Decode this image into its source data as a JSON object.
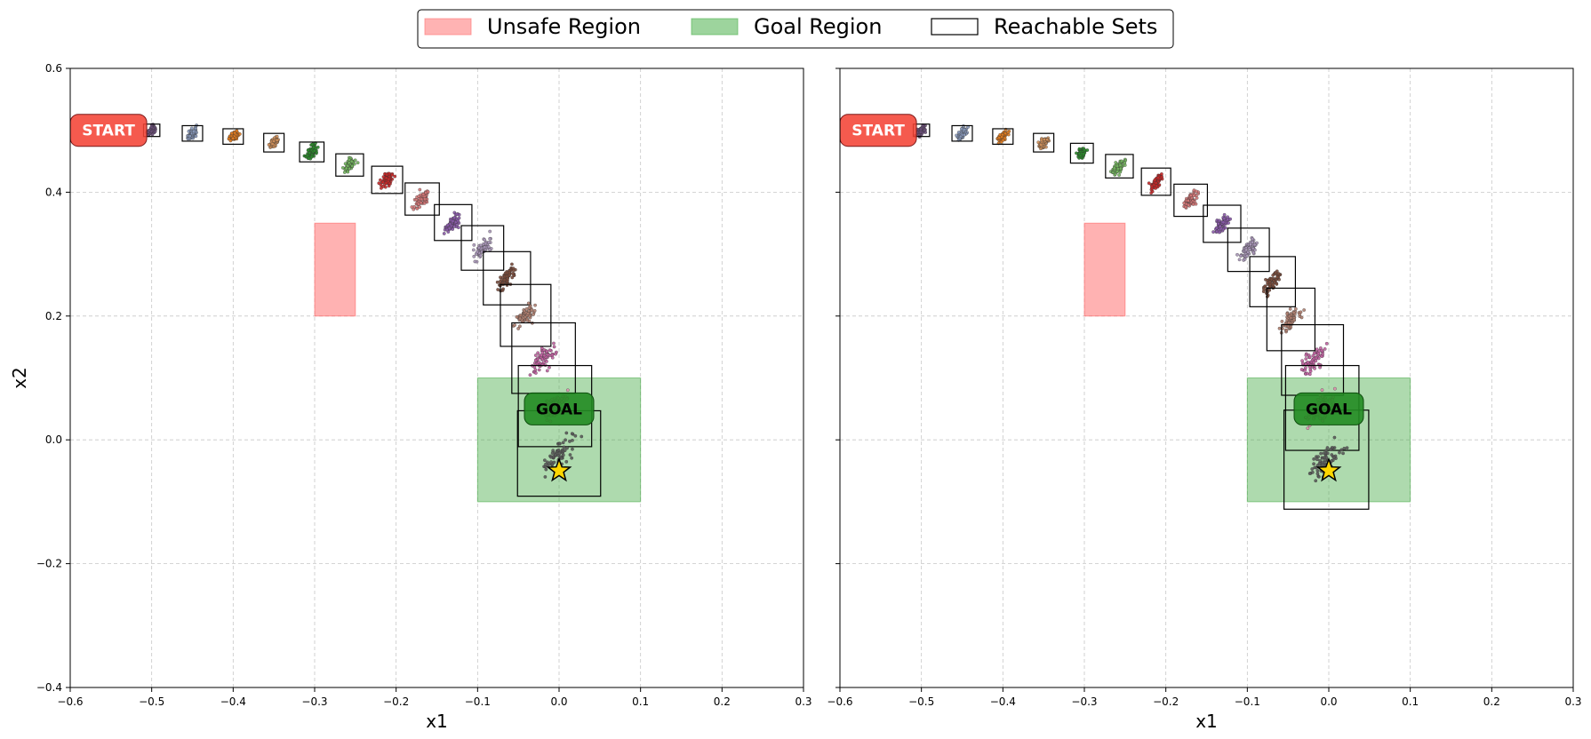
{
  "legend": {
    "placement": "top-center",
    "entries": [
      {
        "label": "Unsafe Region",
        "kind": "patch",
        "color": "#ff8080"
      },
      {
        "label": "Goal Region",
        "kind": "patch",
        "color": "#5cb85c"
      },
      {
        "label": "Reachable Sets",
        "kind": "outline",
        "color": "#000000"
      }
    ]
  },
  "colors": {
    "unsafe": "#ff6666",
    "goal": "#4cae4c",
    "start_label_bg": "#f44336",
    "goal_label_bg": "#228B22",
    "target_star": "#FFD700",
    "grid": "#b0b0b0",
    "set_outline": "#000000"
  },
  "chart_data": [
    {
      "type": "scatter",
      "panel": "left",
      "xlabel": "x1",
      "ylabel": "x2",
      "xlim": [
        -0.6,
        0.3
      ],
      "ylim": [
        -0.4,
        0.6
      ],
      "xticks": [
        "−0.6",
        "−0.5",
        "−0.4",
        "−0.3",
        "−0.2",
        "−0.1",
        "0.0",
        "0.1",
        "0.2",
        "0.3"
      ],
      "yticks": [
        "−0.4",
        "−0.2",
        "0.0",
        "0.2",
        "0.4",
        "0.6"
      ],
      "grid": true,
      "unsafe_region": {
        "x": [
          -0.3,
          -0.25
        ],
        "y": [
          0.2,
          0.35
        ]
      },
      "goal_region": {
        "x": [
          -0.1,
          0.1
        ],
        "y": [
          -0.1,
          0.1
        ]
      },
      "start_label": {
        "text": "START",
        "x": -0.553,
        "y": 0.5
      },
      "goal_label": {
        "text": "GOAL",
        "x": 0.0,
        "y": 0.05
      },
      "target": {
        "x": 0.0,
        "y": -0.05
      },
      "reachable_sets": [
        {
          "x": [
            -0.51,
            -0.49
          ],
          "y": [
            0.49,
            0.51
          ],
          "color": "#6b4f7a"
        },
        {
          "x": [
            -0.4625,
            -0.4375
          ],
          "y": [
            0.4825,
            0.5075
          ],
          "color": "#8899bb"
        },
        {
          "x": [
            -0.4125,
            -0.3875
          ],
          "y": [
            0.4775,
            0.5025
          ],
          "color": "#e07b1f"
        },
        {
          "x": [
            -0.3625,
            -0.3375
          ],
          "y": [
            0.465,
            0.495
          ],
          "color": "#d0905a"
        },
        {
          "x": [
            -0.3185,
            -0.2885
          ],
          "y": [
            0.449,
            0.481
          ],
          "color": "#2a8a2a"
        },
        {
          "x": [
            -0.274,
            -0.24
          ],
          "y": [
            0.426,
            0.462
          ],
          "color": "#73b55e"
        },
        {
          "x": [
            -0.23,
            -0.192
          ],
          "y": [
            0.398,
            0.442
          ],
          "color": "#c62828"
        },
        {
          "x": [
            -0.189,
            -0.147
          ],
          "y": [
            0.363,
            0.415
          ],
          "color": "#d47777"
        },
        {
          "x": [
            -0.153,
            -0.107
          ],
          "y": [
            0.322,
            0.38
          ],
          "color": "#8a5aa8"
        },
        {
          "x": [
            -0.12,
            -0.068
          ],
          "y": [
            0.274,
            0.346
          ],
          "color": "#a896b8"
        },
        {
          "x": [
            -0.093,
            -0.035
          ],
          "y": [
            0.218,
            0.304
          ],
          "color": "#7a4a3a"
        },
        {
          "x": [
            -0.072,
            -0.01
          ],
          "y": [
            0.151,
            0.251
          ],
          "color": "#b08070"
        },
        {
          "x": [
            -0.058,
            0.02
          ],
          "y": [
            0.075,
            0.189
          ],
          "color": "#c060a0"
        },
        {
          "x": [
            -0.05,
            0.04
          ],
          "y": [
            -0.011,
            0.12
          ],
          "color": "#e090b0"
        },
        {
          "x": [
            -0.051,
            0.051
          ],
          "y": [
            -0.091,
            0.047
          ],
          "color": "#5a5a5a"
        }
      ]
    },
    {
      "type": "scatter",
      "panel": "right",
      "xlabel": "x1",
      "ylabel": "",
      "xlim": [
        -0.6,
        0.3
      ],
      "ylim": [
        -0.4,
        0.6
      ],
      "xticks": [
        "−0.6",
        "−0.5",
        "−0.4",
        "−0.3",
        "−0.2",
        "−0.1",
        "0.0",
        "0.1",
        "0.2",
        "0.3"
      ],
      "yticks": [],
      "grid": true,
      "unsafe_region": {
        "x": [
          -0.3,
          -0.25
        ],
        "y": [
          0.2,
          0.35
        ]
      },
      "goal_region": {
        "x": [
          -0.1,
          0.1
        ],
        "y": [
          -0.1,
          0.1
        ]
      },
      "start_label": {
        "text": "START",
        "x": -0.553,
        "y": 0.5
      },
      "goal_label": {
        "text": "GOAL",
        "x": 0.0,
        "y": 0.05
      },
      "target": {
        "x": 0.0,
        "y": -0.05
      },
      "reachable_sets": [
        {
          "x": [
            -0.51,
            -0.49
          ],
          "y": [
            0.49,
            0.51
          ],
          "color": "#6b4f7a"
        },
        {
          "x": [
            -0.4625,
            -0.4375
          ],
          "y": [
            0.4825,
            0.5075
          ],
          "color": "#8899bb"
        },
        {
          "x": [
            -0.4125,
            -0.3875
          ],
          "y": [
            0.4775,
            0.5025
          ],
          "color": "#e07b1f"
        },
        {
          "x": [
            -0.3625,
            -0.3375
          ],
          "y": [
            0.465,
            0.495
          ],
          "color": "#d0905a"
        },
        {
          "x": [
            -0.317,
            -0.289
          ],
          "y": [
            0.447,
            0.479
          ],
          "color": "#2a8a2a"
        },
        {
          "x": [
            -0.274,
            -0.24
          ],
          "y": [
            0.423,
            0.461
          ],
          "color": "#73b55e"
        },
        {
          "x": [
            -0.23,
            -0.194
          ],
          "y": [
            0.395,
            0.439
          ],
          "color": "#c62828"
        },
        {
          "x": [
            -0.19,
            -0.149
          ],
          "y": [
            0.361,
            0.413
          ],
          "color": "#d47777"
        },
        {
          "x": [
            -0.154,
            -0.108
          ],
          "y": [
            0.319,
            0.379
          ],
          "color": "#8a5aa8"
        },
        {
          "x": [
            -0.124,
            -0.073
          ],
          "y": [
            0.272,
            0.342
          ],
          "color": "#a896b8"
        },
        {
          "x": [
            -0.097,
            -0.041
          ],
          "y": [
            0.215,
            0.296
          ],
          "color": "#7a4a3a"
        },
        {
          "x": [
            -0.076,
            -0.017
          ],
          "y": [
            0.144,
            0.245
          ],
          "color": "#b08070"
        },
        {
          "x": [
            -0.058,
            0.018
          ],
          "y": [
            0.072,
            0.186
          ],
          "color": "#c060a0"
        },
        {
          "x": [
            -0.053,
            0.037
          ],
          "y": [
            -0.017,
            0.12
          ],
          "color": "#e090b0"
        },
        {
          "x": [
            -0.055,
            0.049
          ],
          "y": [
            -0.112,
            0.048
          ],
          "color": "#5a5a5a"
        }
      ]
    }
  ]
}
